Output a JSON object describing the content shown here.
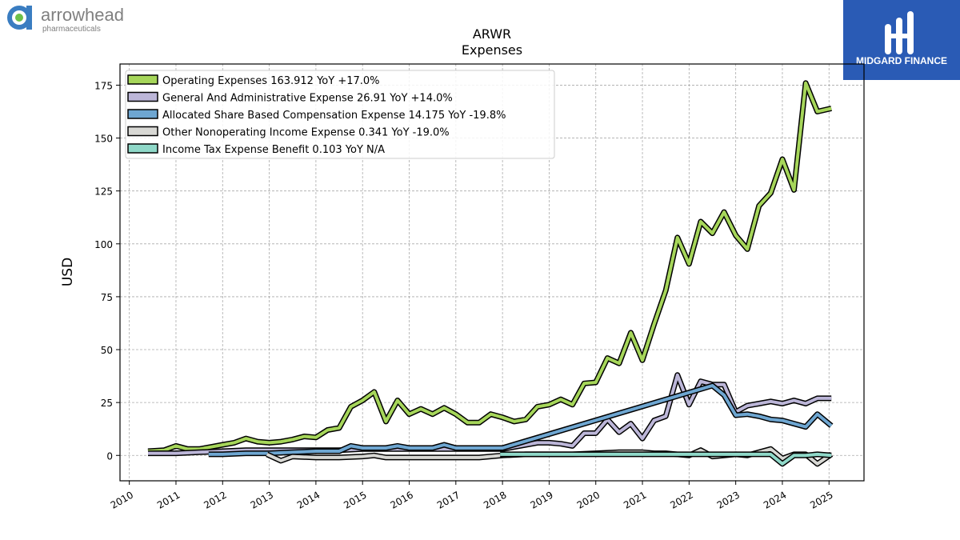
{
  "logo": {
    "name": "arrowhead",
    "subtitle": "pharmaceuticals",
    "icon": "arrowhead-logo-icon"
  },
  "brand": {
    "name": "MIDGARD FINANCE",
    "icon": "midgard-logo-icon",
    "color": "#2a5bb5"
  },
  "chart_data": {
    "type": "line",
    "title": "ARWR",
    "subtitle": "Expenses",
    "ylabel": "USD",
    "xlabel": "",
    "xlim": [
      2009.8,
      2025.75
    ],
    "ylim": [
      -12,
      185
    ],
    "yticks": [
      0,
      25,
      50,
      75,
      100,
      125,
      150,
      175
    ],
    "xticks": [
      2010,
      2011,
      2012,
      2013,
      2014,
      2015,
      2016,
      2017,
      2018,
      2019,
      2020,
      2021,
      2022,
      2023,
      2024,
      2025
    ],
    "grid": true,
    "legend_position": "top-left",
    "series": [
      {
        "name": "Operating Expenses",
        "legend": "Operating Expenses  163.912 YoY +17.0%",
        "color": "#a6d65a",
        "x": [
          2010.4,
          2010.75,
          2011.0,
          2011.25,
          2011.5,
          2011.75,
          2012.0,
          2012.25,
          2012.5,
          2012.75,
          2013.0,
          2013.25,
          2013.5,
          2013.75,
          2014.0,
          2014.25,
          2014.5,
          2014.75,
          2015.0,
          2015.25,
          2015.5,
          2015.75,
          2016.0,
          2016.25,
          2016.5,
          2016.75,
          2017.0,
          2017.25,
          2017.5,
          2017.75,
          2018.0,
          2018.25,
          2018.5,
          2018.75,
          2019.0,
          2019.25,
          2019.5,
          2019.75,
          2020.0,
          2020.25,
          2020.5,
          2020.75,
          2021.0,
          2021.25,
          2021.5,
          2021.75,
          2022.0,
          2022.25,
          2022.5,
          2022.75,
          2023.0,
          2023.25,
          2023.5,
          2023.75,
          2024.0,
          2024.25,
          2024.5,
          2024.75,
          2025.05
        ],
        "values": [
          2,
          2.5,
          4.5,
          3,
          3,
          4,
          5,
          6,
          8,
          6.5,
          6,
          6.5,
          7.5,
          9,
          8.5,
          12,
          13,
          23,
          26,
          30,
          16,
          26,
          19.5,
          22,
          19.5,
          22.5,
          19.5,
          15.5,
          15.5,
          19.5,
          18,
          16,
          17,
          23,
          24,
          26.5,
          24,
          34,
          34.5,
          46,
          43.5,
          58,
          45,
          62,
          78,
          103,
          90.5,
          110.5,
          105,
          115,
          104,
          97.5,
          118,
          124,
          140,
          125.5,
          176,
          162.5,
          164
        ]
      },
      {
        "name": "General And Administrative Expense",
        "legend": "General And Administrative Expense  26.91 YoY +14.0%",
        "color": "#bcb6d8",
        "x": [
          2010.4,
          2011.0,
          2011.5,
          2012.0,
          2012.5,
          2013.0,
          2013.5,
          2014.0,
          2014.5,
          2015.0,
          2015.5,
          2016.0,
          2016.5,
          2017.0,
          2017.5,
          2018.0,
          2018.25,
          2018.5,
          2018.75,
          2019.0,
          2019.25,
          2019.5,
          2019.75,
          2020.0,
          2020.25,
          2020.5,
          2020.75,
          2021.0,
          2021.25,
          2021.5,
          2021.75,
          2022.0,
          2022.25,
          2022.5,
          2022.75,
          2023.0,
          2023.25,
          2023.5,
          2023.75,
          2024.0,
          2024.25,
          2024.5,
          2024.75,
          2025.05
        ],
        "values": [
          1,
          1,
          1.5,
          2,
          2.5,
          2.5,
          2.5,
          2.5,
          2.5,
          3,
          3,
          3,
          3,
          3,
          3,
          3,
          4,
          5,
          6,
          6,
          5.5,
          4.5,
          10.5,
          10.5,
          17,
          11,
          15,
          8,
          16.5,
          18.5,
          38,
          24,
          35,
          33.5,
          33.5,
          20.5,
          23.5,
          24.5,
          25.5,
          24.5,
          26,
          24.5,
          27,
          27
        ]
      },
      {
        "name": "Allocated Share Based Compensation Expense",
        "legend": "Allocated Share Based Compensation Expense  14.175 YoY -19.8%",
        "color": "#6ea6d1",
        "x": [
          2011.7,
          2012.0,
          2012.5,
          2013.0,
          2013.5,
          2014.0,
          2014.5,
          2014.75,
          2015.0,
          2015.5,
          2015.75,
          2016.0,
          2016.5,
          2016.75,
          2017.0,
          2017.5,
          2018.0,
          2022.5,
          2022.75,
          2023.0,
          2023.25,
          2023.5,
          2023.75,
          2024.0,
          2024.25,
          2024.5,
          2024.75,
          2025.05
        ],
        "values": [
          0.5,
          0.5,
          1,
          1,
          1.5,
          2,
          2,
          4.5,
          3.5,
          3.5,
          4.5,
          3.5,
          3.5,
          5,
          3.5,
          3.5,
          3.5,
          33,
          28.5,
          19,
          19.5,
          18.5,
          17,
          16.5,
          15,
          13.5,
          19.5,
          14
        ]
      },
      {
        "name": "Other Nonoperating Income Expense",
        "legend": "Other Nonoperating Income Expense  0.341 YoY -19.0%",
        "color": "#d8d8d4",
        "x": [
          2012.95,
          2013.25,
          2013.5,
          2014.0,
          2014.5,
          2015.0,
          2015.25,
          2015.5,
          2016.0,
          2016.5,
          2017.0,
          2017.5,
          2018.0,
          2018.5,
          2019.0,
          2019.5,
          2020.0,
          2020.5,
          2021.0,
          2021.25,
          2021.5,
          2022.0,
          2022.25,
          2022.5,
          2023.0,
          2023.25,
          2023.5,
          2023.75,
          2024.0,
          2024.25,
          2024.5,
          2024.75,
          2025.05
        ],
        "values": [
          0.5,
          -2.5,
          -0.5,
          -1,
          -1,
          -0.5,
          0,
          -1,
          -1,
          -1,
          -1,
          -1,
          0,
          0.5,
          0.5,
          0.5,
          1,
          1.5,
          1.5,
          1,
          1,
          0,
          2.5,
          -0.5,
          0.5,
          0,
          1.5,
          3,
          -1.5,
          0.5,
          0.5,
          -4,
          0.5
        ]
      },
      {
        "name": "Income Tax Expense Benefit",
        "legend": "Income Tax Expense Benefit  0.103 YoY N/A",
        "color": "#8fd8c8",
        "x": [
          2017.95,
          2018.5,
          2019.0,
          2019.5,
          2020.0,
          2020.5,
          2021.0,
          2021.5,
          2022.0,
          2022.5,
          2023.0,
          2023.5,
          2023.75,
          2024.0,
          2024.25,
          2024.5,
          2024.75,
          2025.05
        ],
        "values": [
          0.5,
          0.5,
          0.5,
          0.5,
          0.5,
          0.5,
          0.5,
          0.5,
          0.5,
          0.5,
          0.5,
          0.5,
          0.5,
          -4,
          0,
          0,
          0.5,
          0
        ]
      }
    ]
  }
}
